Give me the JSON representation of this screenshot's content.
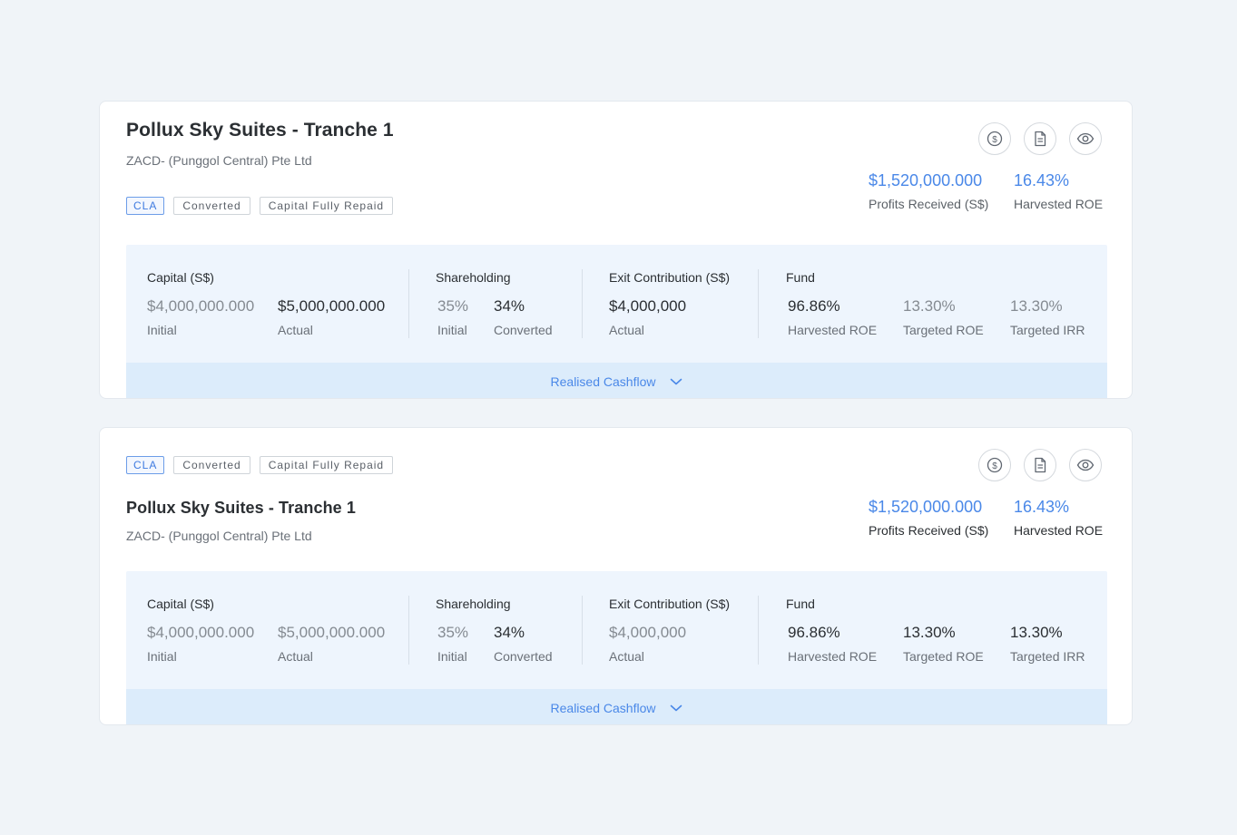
{
  "cards": [
    {
      "title": "Pollux Sky Suites - Tranche 1",
      "company": "ZACD- (Punggol Central) Pte Ltd",
      "tags": [
        "CLA",
        "Converted",
        "Capital Fully Repaid"
      ],
      "profits_value": "$1,520,000.000",
      "profits_label": "Profits Received (S$)",
      "roe_value": "16.43%",
      "roe_label": "Harvested ROE",
      "capital": {
        "title": "Capital (S$)",
        "initial_value": "$4,000,000.000",
        "initial_label": "Initial",
        "actual_value": "$5,000,000.000",
        "actual_label": "Actual"
      },
      "shareholding": {
        "title": "Shareholding",
        "initial_value": "35%",
        "initial_label": "Initial",
        "converted_value": "34%",
        "converted_label": "Converted"
      },
      "exit": {
        "title": "Exit Contribution (S$)",
        "actual_value": "$4,000,000",
        "actual_label": "Actual"
      },
      "fund": {
        "title": "Fund",
        "harvested_value": "96.86%",
        "harvested_label": "Harvested ROE",
        "targeted_roe_value": "13.30%",
        "targeted_roe_label": "Targeted ROE",
        "targeted_irr_value": "13.30%",
        "targeted_irr_label": "Targeted IRR"
      },
      "cashflow_label": "Realised Cashflow"
    },
    {
      "title": "Pollux Sky Suites - Tranche 1",
      "company": "ZACD- (Punggol Central) Pte Ltd",
      "tags": [
        "CLA",
        "Converted",
        "Capital Fully Repaid"
      ],
      "profits_value": "$1,520,000.000",
      "profits_label": "Profits Received (S$)",
      "roe_value": "16.43%",
      "roe_label": "Harvested ROE",
      "capital": {
        "title": "Capital (S$)",
        "initial_value": "$4,000,000.000",
        "initial_label": "Initial",
        "actual_value": "$5,000,000.000",
        "actual_label": "Actual"
      },
      "shareholding": {
        "title": "Shareholding",
        "initial_value": "35%",
        "initial_label": "Initial",
        "converted_value": "34%",
        "converted_label": "Converted"
      },
      "exit": {
        "title": "Exit Contribution (S$)",
        "actual_value": "$4,000,000",
        "actual_label": "Actual"
      },
      "fund": {
        "title": "Fund",
        "harvested_value": "96.86%",
        "harvested_label": "Harvested ROE",
        "targeted_roe_value": "13.30%",
        "targeted_roe_label": "Targeted ROE",
        "targeted_irr_value": "13.30%",
        "targeted_irr_label": "Targeted IRR"
      },
      "cashflow_label": "Realised Cashflow"
    }
  ],
  "icons": [
    "dollar-icon",
    "document-icon",
    "eye-icon"
  ],
  "colors": {
    "accent": "#4a88e8",
    "background": "#f0f4f8",
    "stats_bg": "#eef5fd",
    "cashflow_bg": "#dcecfb"
  }
}
